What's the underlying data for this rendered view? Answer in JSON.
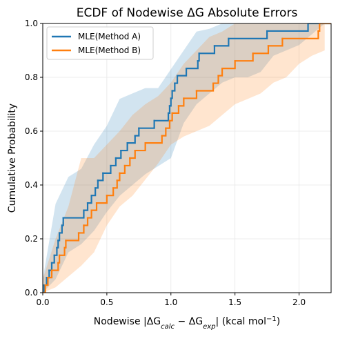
{
  "chart_data": {
    "type": "ecdf",
    "title": "ECDF of Nodewise ΔG Absolute Errors",
    "ylabel": "Cumulative Probability",
    "xlabel_parts": [
      "Nodewise |ΔG",
      "calc",
      " − ΔG",
      "exp",
      "| (kcal mol",
      "−1",
      ")"
    ],
    "xlim": [
      0,
      2.25
    ],
    "ylim": [
      0,
      1
    ],
    "xticks": [
      {
        "value": 0,
        "label": "0.0"
      },
      {
        "value": 0.5,
        "label": "0.5"
      },
      {
        "value": 1,
        "label": "1.0"
      },
      {
        "value": 1.5,
        "label": "1.5"
      },
      {
        "value": 2,
        "label": "2.0"
      }
    ],
    "yticks": [
      {
        "value": 0,
        "label": "0.0"
      },
      {
        "value": 0.2,
        "label": "0.2"
      },
      {
        "value": 0.4,
        "label": "0.4"
      },
      {
        "value": 0.6,
        "label": "0.6"
      },
      {
        "value": 0.8,
        "label": "0.8"
      },
      {
        "value": 1,
        "label": "1.0"
      }
    ],
    "grid": true,
    "legend": "upper left",
    "band_x": [
      0,
      0.1,
      0.2,
      0.3,
      0.4,
      0.5,
      0.6,
      0.7,
      0.8,
      0.9,
      1.0,
      1.1,
      1.2,
      1.3,
      1.4,
      1.5,
      1.6,
      1.7,
      1.8,
      1.9,
      2.0,
      2.1,
      2.2
    ],
    "series": [
      {
        "name": "MLE(Method A)",
        "color": "#1f77b4",
        "x": [
          0.01,
          0.03,
          0.05,
          0.07,
          0.09,
          0.11,
          0.12,
          0.13,
          0.15,
          0.16,
          0.32,
          0.35,
          0.38,
          0.41,
          0.43,
          0.47,
          0.53,
          0.57,
          0.61,
          0.66,
          0.72,
          0.75,
          0.87,
          0.98,
          0.99,
          1.0,
          1.01,
          1.03,
          1.05,
          1.12,
          1.21,
          1.22,
          1.34,
          1.45,
          1.75,
          2.07
        ],
        "values": [
          0.028,
          0.056,
          0.083,
          0.111,
          0.139,
          0.167,
          0.194,
          0.222,
          0.25,
          0.278,
          0.306,
          0.333,
          0.361,
          0.389,
          0.417,
          0.444,
          0.472,
          0.5,
          0.528,
          0.556,
          0.583,
          0.611,
          0.639,
          0.667,
          0.694,
          0.722,
          0.75,
          0.778,
          0.806,
          0.833,
          0.861,
          0.889,
          0.917,
          0.944,
          0.972,
          1.0
        ],
        "band_lower": [
          0,
          0.05,
          0.15,
          0.18,
          0.23,
          0.3,
          0.36,
          0.4,
          0.44,
          0.47,
          0.5,
          0.63,
          0.7,
          0.74,
          0.78,
          0.8,
          0.8,
          0.82,
          0.88,
          0.9,
          0.92,
          0.96,
          1.0
        ],
        "band_upper": [
          0.05,
          0.33,
          0.43,
          0.46,
          0.55,
          0.62,
          0.72,
          0.74,
          0.76,
          0.76,
          0.83,
          0.9,
          0.97,
          0.98,
          1.0,
          1.0,
          1.0,
          1.0,
          1.0,
          1.0,
          1.0,
          1.0,
          1.0
        ]
      },
      {
        "name": "MLE(Method B)",
        "color": "#ff7f0e",
        "x": [
          0.02,
          0.04,
          0.07,
          0.12,
          0.13,
          0.17,
          0.18,
          0.28,
          0.32,
          0.35,
          0.38,
          0.42,
          0.5,
          0.55,
          0.58,
          0.6,
          0.64,
          0.68,
          0.72,
          0.8,
          0.93,
          0.96,
          0.99,
          1.01,
          1.06,
          1.1,
          1.2,
          1.33,
          1.37,
          1.4,
          1.5,
          1.64,
          1.76,
          1.87,
          2.15,
          2.16
        ],
        "values": [
          0.028,
          0.056,
          0.083,
          0.111,
          0.139,
          0.167,
          0.194,
          0.222,
          0.25,
          0.278,
          0.306,
          0.333,
          0.361,
          0.389,
          0.417,
          0.444,
          0.472,
          0.5,
          0.528,
          0.556,
          0.583,
          0.611,
          0.639,
          0.667,
          0.694,
          0.722,
          0.75,
          0.778,
          0.806,
          0.833,
          0.861,
          0.889,
          0.917,
          0.944,
          0.972,
          1.0
        ],
        "band_lower": [
          0,
          0.02,
          0.06,
          0.1,
          0.15,
          0.25,
          0.32,
          0.36,
          0.42,
          0.48,
          0.55,
          0.58,
          0.6,
          0.62,
          0.66,
          0.7,
          0.72,
          0.74,
          0.78,
          0.8,
          0.85,
          0.88,
          0.9
        ],
        "band_upper": [
          0.05,
          0.2,
          0.32,
          0.5,
          0.5,
          0.55,
          0.6,
          0.66,
          0.7,
          0.73,
          0.78,
          0.85,
          0.9,
          0.95,
          0.97,
          1.0,
          1.0,
          1.0,
          1.0,
          1.0,
          1.0,
          1.0,
          1.0
        ]
      }
    ]
  }
}
